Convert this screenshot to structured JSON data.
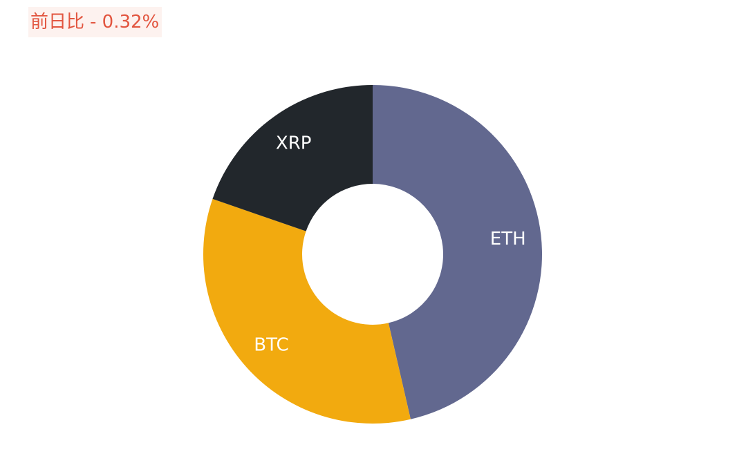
{
  "header": {
    "change_label": "前日比",
    "change_value": "- 0.32%"
  },
  "chart_data": {
    "type": "pie",
    "variant": "donut",
    "categories": [
      "ETH",
      "BTC",
      "XRP"
    ],
    "values": [
      46.4,
      33.9,
      19.7
    ],
    "colors": [
      "#62688f",
      "#f2aa0f",
      "#22272c"
    ],
    "start_angle": "12 o'clock",
    "direction": "clockwise",
    "legend": "none",
    "labels_on_slices": true
  }
}
